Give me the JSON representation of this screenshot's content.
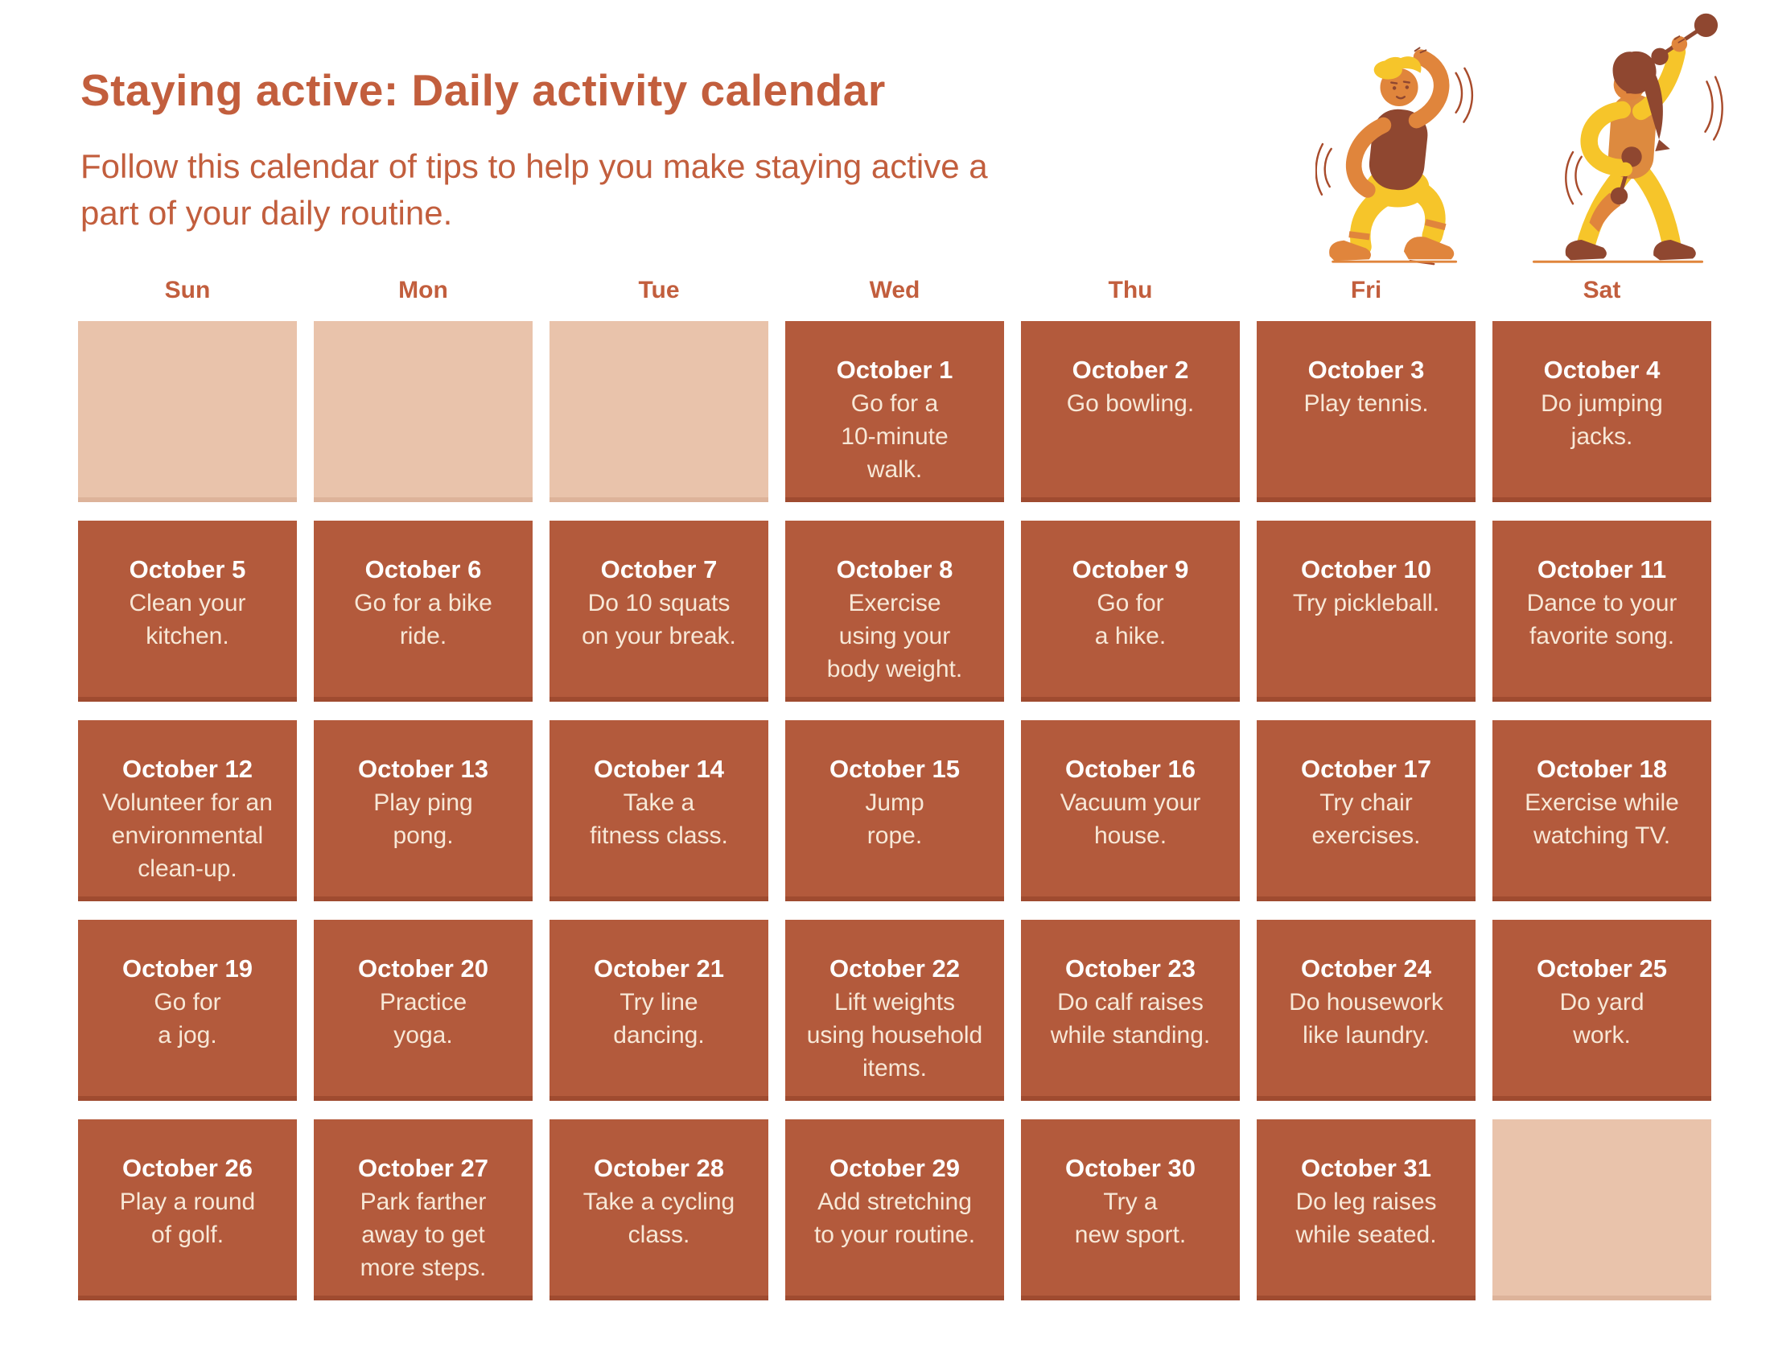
{
  "header": {
    "title": "Staying active: Daily activity calendar",
    "subtitle": "Follow this calendar of tips to help you make staying active a\npart of your daily routine."
  },
  "illustrations": {
    "left": "dancing-man",
    "right": "woman-lifting-dumbbells"
  },
  "colors": {
    "accent_text": "#c25e3d",
    "filled_cell": "#b35a3c",
    "empty_cell": "#e9c3ab",
    "date_text": "#ffffff",
    "activity_text": "#f7e8d7",
    "illustration_yellow": "#f6c52a",
    "illustration_orange": "#e0853c",
    "illustration_maroon": "#8f4730"
  },
  "calendar": {
    "day_headers": [
      "Sun",
      "Mon",
      "Tue",
      "Wed",
      "Thu",
      "Fri",
      "Sat"
    ],
    "cells": [
      {
        "empty": true
      },
      {
        "empty": true
      },
      {
        "empty": true
      },
      {
        "date": "October 1",
        "activity": "Go for a\n10-minute\nwalk."
      },
      {
        "date": "October 2",
        "activity": "Go bowling."
      },
      {
        "date": "October 3",
        "activity": "Play tennis."
      },
      {
        "date": "October 4",
        "activity": "Do jumping\njacks."
      },
      {
        "date": "October 5",
        "activity": "Clean your\nkitchen."
      },
      {
        "date": "October 6",
        "activity": "Go for a bike\nride."
      },
      {
        "date": "October 7",
        "activity": "Do 10 squats\non your break."
      },
      {
        "date": "October 8",
        "activity": "Exercise\nusing your\nbody weight."
      },
      {
        "date": "October 9",
        "activity": "Go for\na hike."
      },
      {
        "date": "October 10",
        "activity": "Try pickleball."
      },
      {
        "date": "October 11",
        "activity": "Dance to your\nfavorite song."
      },
      {
        "date": "October 12",
        "activity": "Volunteer for an\nenvironmental\nclean-up."
      },
      {
        "date": "October 13",
        "activity": "Play ping\npong."
      },
      {
        "date": "October 14",
        "activity": "Take a\nfitness class."
      },
      {
        "date": "October 15",
        "activity": "Jump\nrope."
      },
      {
        "date": "October 16",
        "activity": "Vacuum your\nhouse."
      },
      {
        "date": "October 17",
        "activity": "Try chair\nexercises."
      },
      {
        "date": "October 18",
        "activity": "Exercise while\nwatching TV."
      },
      {
        "date": "October 19",
        "activity": "Go for\na jog."
      },
      {
        "date": "October 20",
        "activity": "Practice\nyoga."
      },
      {
        "date": "October 21",
        "activity": "Try line\ndancing."
      },
      {
        "date": "October 22",
        "activity": "Lift weights\nusing household\nitems."
      },
      {
        "date": "October 23",
        "activity": "Do calf raises\nwhile standing."
      },
      {
        "date": "October 24",
        "activity": "Do housework\nlike laundry."
      },
      {
        "date": "October 25",
        "activity": "Do yard\nwork."
      },
      {
        "date": "October 26",
        "activity": "Play a round\nof golf."
      },
      {
        "date": "October 27",
        "activity": "Park farther\naway to get\nmore steps."
      },
      {
        "date": "October 28",
        "activity": "Take a cycling\nclass."
      },
      {
        "date": "October 29",
        "activity": "Add stretching\nto your routine."
      },
      {
        "date": "October 30",
        "activity": "Try a\nnew sport."
      },
      {
        "date": "October 31",
        "activity": "Do leg raises\nwhile seated."
      },
      {
        "empty": true
      }
    ]
  }
}
